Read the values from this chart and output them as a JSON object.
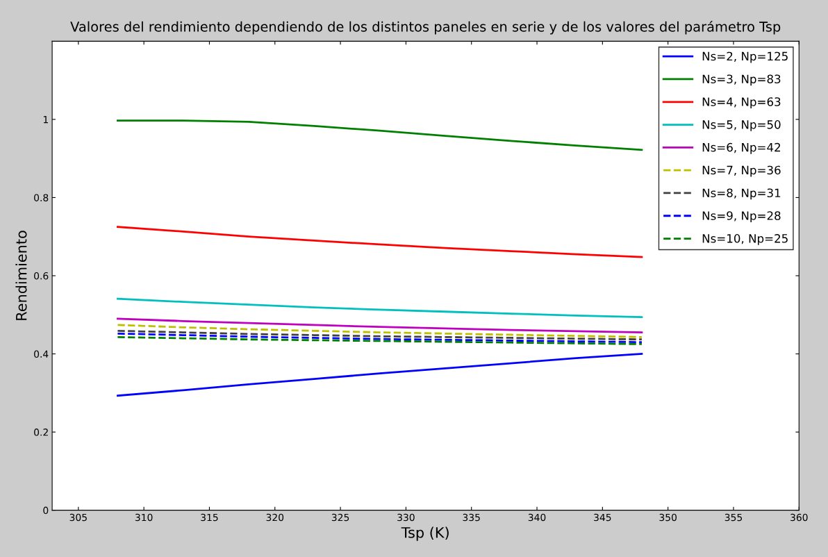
{
  "chart_data": {
    "type": "line",
    "title": "Valores del rendimiento dependiendo de los distintos paneles en serie y de los valores del parámetro Tsp",
    "xlabel": "Tsp (K)",
    "ylabel": "Rendimiento",
    "x": [
      308,
      313,
      318,
      323,
      328,
      333,
      338,
      343,
      348
    ],
    "series": [
      {
        "name": "Ns=2, Np=125",
        "color": "#0000ff",
        "values": [
          0.293,
          0.307,
          0.322,
          0.336,
          0.35,
          0.363,
          0.376,
          0.389,
          0.4
        ]
      },
      {
        "name": "Ns=3, Np=83",
        "color": "#008000",
        "values": [
          0.997,
          0.997,
          0.994,
          0.983,
          0.971,
          0.958,
          0.945,
          0.933,
          0.922
        ]
      },
      {
        "name": "Ns=4, Np=63",
        "color": "#ff0000",
        "values": [
          0.725,
          0.713,
          0.7,
          0.69,
          0.68,
          0.671,
          0.663,
          0.655,
          0.648
        ]
      },
      {
        "name": "Ns=5, Np=50",
        "color": "#00bfbf",
        "values": [
          0.541,
          0.533,
          0.526,
          0.519,
          0.513,
          0.508,
          0.503,
          0.498,
          0.494
        ]
      },
      {
        "name": "Ns=6, Np=42",
        "color": "#bf00bf",
        "values": [
          0.49,
          0.484,
          0.479,
          0.474,
          0.469,
          0.465,
          0.461,
          0.458,
          0.455
        ]
      },
      {
        "name": "Ns=7, Np=36",
        "color": "#bfbf00",
        "line_style": "dashed",
        "values": [
          0.474,
          0.468,
          0.463,
          0.459,
          0.455,
          0.452,
          0.449,
          0.446,
          0.443
        ]
      },
      {
        "name": "Ns=8, Np=31",
        "color": "#404040",
        "line_style": "dashed",
        "values": [
          0.459,
          0.455,
          0.451,
          0.448,
          0.445,
          0.443,
          0.441,
          0.439,
          0.437
        ]
      },
      {
        "name": "Ns=9, Np=28",
        "color": "#0000ff",
        "line_style": "dashed",
        "values": [
          0.452,
          0.448,
          0.444,
          0.441,
          0.438,
          0.436,
          0.434,
          0.432,
          0.43
        ]
      },
      {
        "name": "Ns=10, Np=25",
        "color": "#008000",
        "line_style": "dashed",
        "values": [
          0.443,
          0.44,
          0.437,
          0.435,
          0.433,
          0.431,
          0.429,
          0.427,
          0.425
        ]
      }
    ],
    "xlim": [
      303,
      360
    ],
    "xticks": [
      305,
      310,
      315,
      320,
      325,
      330,
      335,
      340,
      345,
      350,
      355,
      360
    ],
    "ylim": [
      0,
      1.2
    ],
    "yticks": [
      0,
      0.2,
      0.4,
      0.6,
      0.8,
      1
    ],
    "line_style": "solid",
    "marker": "none",
    "grid": false,
    "legend": "top right"
  }
}
